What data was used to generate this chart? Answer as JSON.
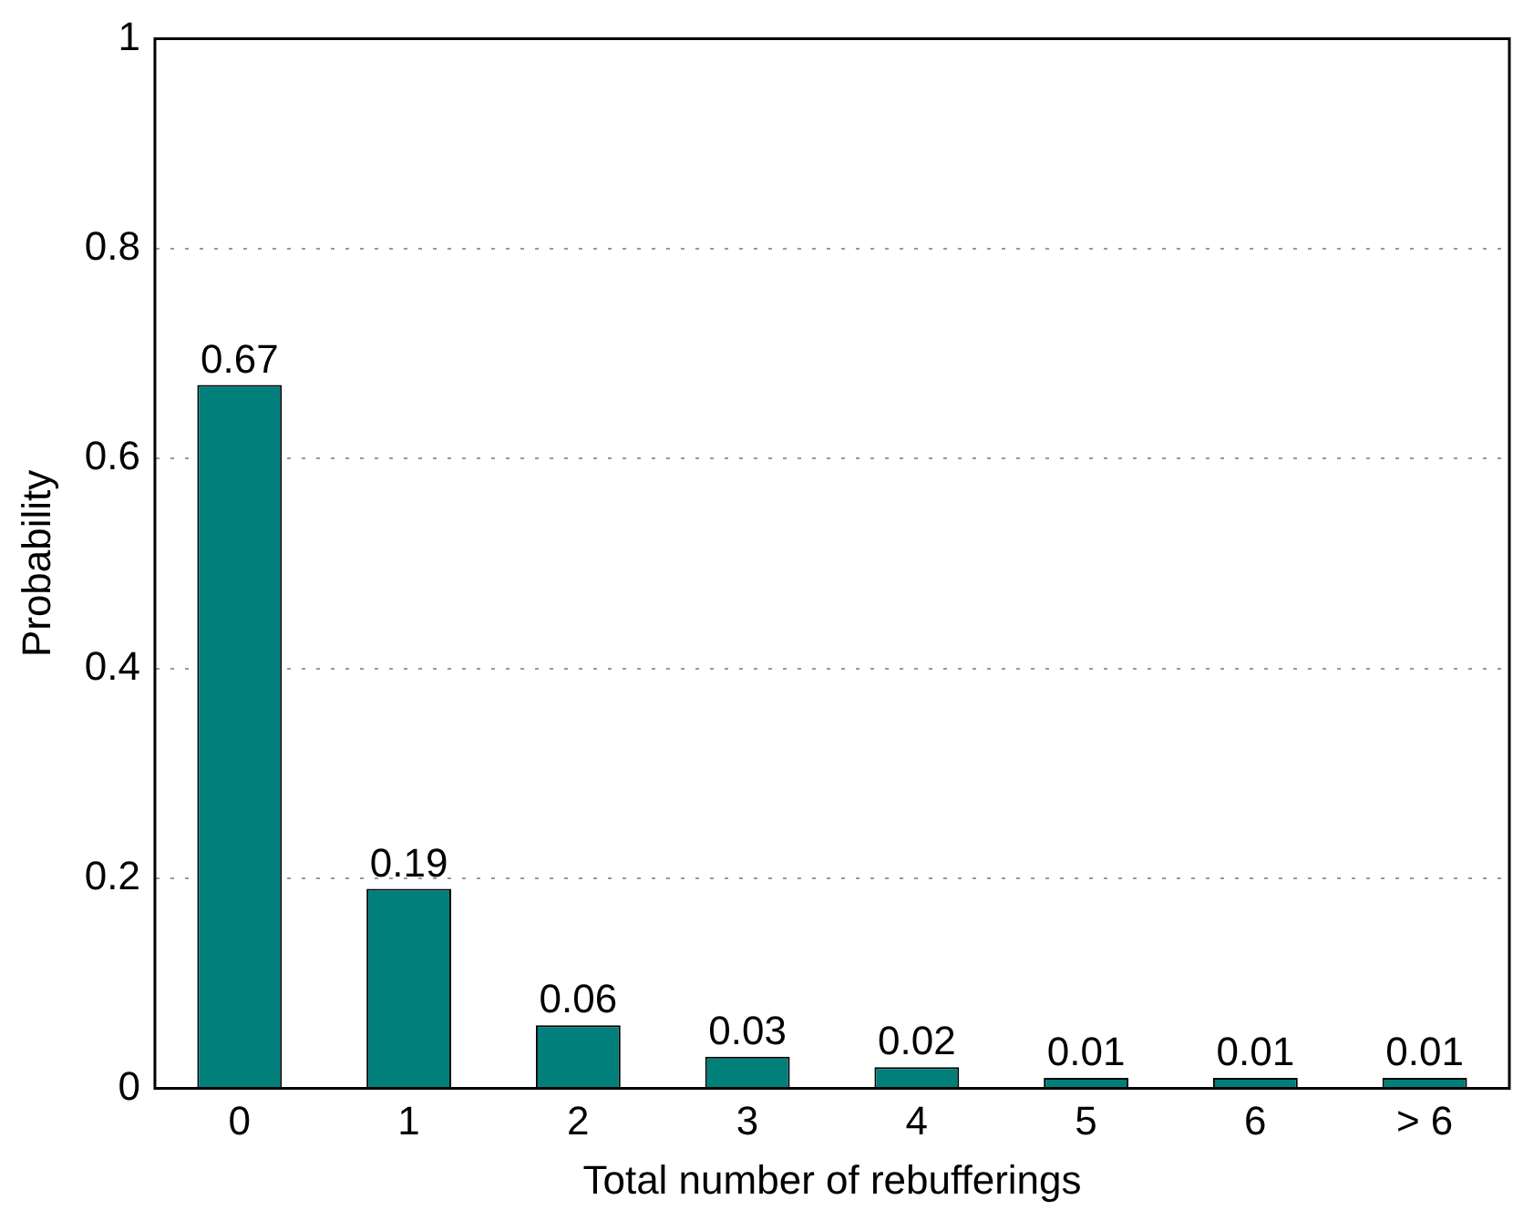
{
  "chart_data": {
    "type": "bar",
    "xlabel": "Total number of rebufferings",
    "ylabel": "Probability",
    "categories": [
      "0",
      "1",
      "2",
      "3",
      "4",
      "5",
      "6",
      "> 6"
    ],
    "values": [
      0.67,
      0.19,
      0.06,
      0.03,
      0.02,
      0.01,
      0.01,
      0.01
    ],
    "color": "#007f7b",
    "data_labels": true,
    "ylim": [
      0,
      1
    ],
    "yticks": [
      0,
      0.2,
      0.4,
      0.6,
      0.8,
      1
    ],
    "grid": "y"
  }
}
